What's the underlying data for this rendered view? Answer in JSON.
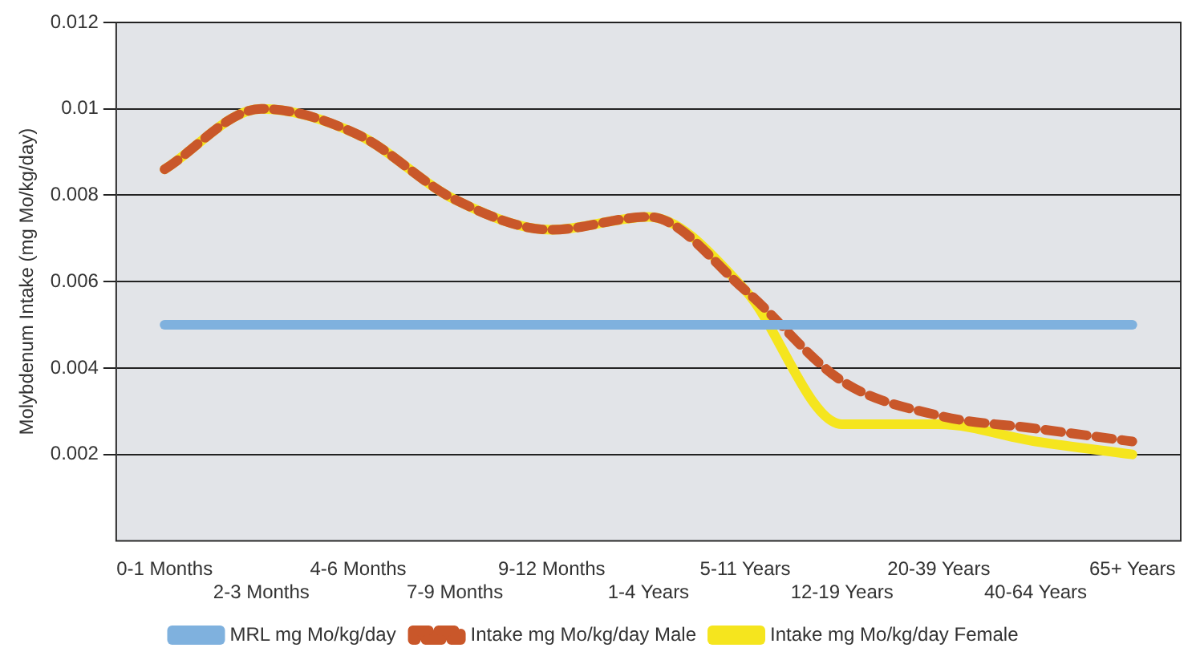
{
  "chart_data": {
    "type": "line",
    "ylabel": "Molybdenum Intake (mg Mo/kg/day)",
    "categories": [
      "0-1 Months",
      "2-3 Months",
      "4-6 Months",
      "7-9 Months",
      "9-12 Months",
      "1-4 Years",
      "5-11 Years",
      "12-19 Years",
      "20-39 Years",
      "40-64 Years",
      "65+ Years"
    ],
    "series": [
      {
        "name": "MRL mg Mo/kg/day",
        "color": "#7fb1de",
        "line_style": "solid",
        "values": [
          0.005,
          0.005,
          0.005,
          0.005,
          0.005,
          0.005,
          0.005,
          0.005,
          0.005,
          0.005,
          0.005
        ]
      },
      {
        "name": "Intake mg Mo/kg/day Male",
        "color": "#c9572a",
        "line_style": "dashed",
        "values": [
          0.0086,
          0.01,
          0.0094,
          0.0079,
          0.0072,
          0.0075,
          0.0058,
          0.0037,
          0.0029,
          0.0026,
          0.0023
        ]
      },
      {
        "name": "Intake mg Mo/kg/day Female",
        "color": "#f5e51e",
        "line_style": "solid",
        "values": [
          0.0086,
          0.01,
          0.0094,
          0.0079,
          0.0072,
          0.0075,
          0.0058,
          0.0027,
          0.0027,
          0.0023,
          0.002
        ]
      }
    ],
    "ylim": [
      0,
      0.012
    ],
    "yticks": [
      0.002,
      0.004,
      0.006,
      0.008,
      0.01,
      0.012
    ],
    "grid": "y",
    "legend": "bottom",
    "marker": "none"
  }
}
